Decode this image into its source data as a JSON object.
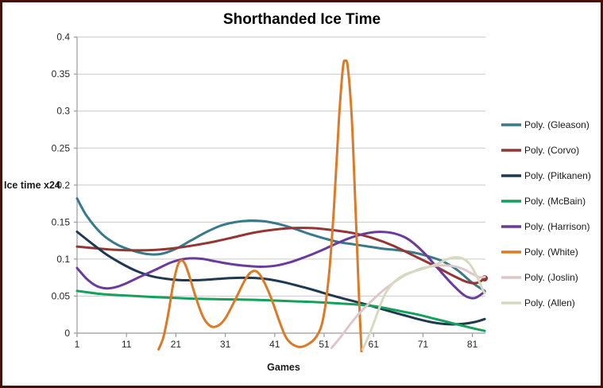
{
  "title": "Shorthanded Ice Time",
  "colors": {
    "grid": "#C9C9C9",
    "axis": "#9B9B9B",
    "tick_text": "#262626",
    "border": "#451008",
    "background": "#FFFFFF"
  },
  "legend": {
    "position": "right",
    "entries": [
      {
        "label": "Poly. (Gleason)",
        "color": "#38798C"
      },
      {
        "label": "Poly. (Corvo)",
        "color": "#943634"
      },
      {
        "label": "Poly. (Pitkanen)",
        "color": "#1F3A50"
      },
      {
        "label": "Poly. (McBain)",
        "color": "#16A05D"
      },
      {
        "label": "Poly. (Harrison)",
        "color": "#693C9B"
      },
      {
        "label": "Poly. (White)",
        "color": "#DB7A27"
      },
      {
        "label": "Poly. (Joslin)",
        "color": "#DEC7C9"
      },
      {
        "label": "Poly. (Allen)",
        "color": "#D6DABE"
      }
    ]
  },
  "chart_data": {
    "type": "line",
    "title": "Shorthanded Ice Time",
    "xlabel": "Games",
    "ylabel": "Ice time x24",
    "xlim": [
      1,
      83.5
    ],
    "ylim": [
      0,
      0.4
    ],
    "grid": true,
    "legend_position": "right",
    "x_ticks": [
      1,
      11,
      21,
      31,
      41,
      51,
      61,
      71,
      81
    ],
    "y_ticks": [
      "0",
      "0.05",
      "0.1",
      "0.15",
      "0.2",
      "0.25",
      "0.3",
      "0.35",
      "0.4"
    ],
    "y_tick_values": [
      0,
      0.05,
      0.1,
      0.15,
      0.2,
      0.25,
      0.3,
      0.35,
      0.4
    ],
    "series": [
      {
        "name": "Poly. (Gleason)",
        "color": "#38798C",
        "end_dot": false,
        "points": [
          [
            1,
            0.182
          ],
          [
            3,
            0.158
          ],
          [
            6,
            0.134
          ],
          [
            9,
            0.12
          ],
          [
            12,
            0.112
          ],
          [
            15,
            0.107
          ],
          [
            18,
            0.107
          ],
          [
            21,
            0.114
          ],
          [
            24,
            0.125
          ],
          [
            27,
            0.136
          ],
          [
            30,
            0.145
          ],
          [
            33,
            0.15
          ],
          [
            36,
            0.152
          ],
          [
            39,
            0.151
          ],
          [
            42,
            0.147
          ],
          [
            45,
            0.141
          ],
          [
            48,
            0.134
          ],
          [
            51,
            0.128
          ],
          [
            54,
            0.123
          ],
          [
            57,
            0.12
          ],
          [
            60,
            0.117
          ],
          [
            63,
            0.114
          ],
          [
            66,
            0.112
          ],
          [
            69,
            0.109
          ],
          [
            72,
            0.104
          ],
          [
            75,
            0.097
          ],
          [
            78,
            0.085
          ],
          [
            81,
            0.068
          ],
          [
            83.5,
            0.057
          ]
        ]
      },
      {
        "name": "Poly. (Corvo)",
        "color": "#943634",
        "end_dot": true,
        "points": [
          [
            1,
            0.117
          ],
          [
            5,
            0.1145
          ],
          [
            9,
            0.1125
          ],
          [
            13,
            0.1118
          ],
          [
            17,
            0.1125
          ],
          [
            21,
            0.115
          ],
          [
            25,
            0.119
          ],
          [
            29,
            0.124
          ],
          [
            33,
            0.13
          ],
          [
            37,
            0.136
          ],
          [
            41,
            0.14
          ],
          [
            45,
            0.142
          ],
          [
            49,
            0.1418
          ],
          [
            53,
            0.139
          ],
          [
            57,
            0.135
          ],
          [
            61,
            0.128
          ],
          [
            65,
            0.118
          ],
          [
            69,
            0.105
          ],
          [
            73,
            0.092
          ],
          [
            77,
            0.078
          ],
          [
            80,
            0.069
          ],
          [
            82,
            0.068
          ],
          [
            83.5,
            0.074
          ]
        ]
      },
      {
        "name": "Poly. (Pitkanen)",
        "color": "#1F3A50",
        "end_dot": false,
        "points": [
          [
            1,
            0.137
          ],
          [
            4,
            0.121
          ],
          [
            7,
            0.106
          ],
          [
            10,
            0.094
          ],
          [
            13,
            0.084
          ],
          [
            16,
            0.077
          ],
          [
            19,
            0.0735
          ],
          [
            22,
            0.0715
          ],
          [
            25,
            0.0715
          ],
          [
            28,
            0.0725
          ],
          [
            31,
            0.074
          ],
          [
            34,
            0.0748
          ],
          [
            37,
            0.0745
          ],
          [
            40,
            0.0725
          ],
          [
            43,
            0.0685
          ],
          [
            46,
            0.0635
          ],
          [
            49,
            0.058
          ],
          [
            52,
            0.052
          ],
          [
            55,
            0.0465
          ],
          [
            58,
            0.0415
          ],
          [
            61,
            0.036
          ],
          [
            64,
            0.03
          ],
          [
            67,
            0.0245
          ],
          [
            70,
            0.019
          ],
          [
            73,
            0.0145
          ],
          [
            76,
            0.012
          ],
          [
            79,
            0.0125
          ],
          [
            81.5,
            0.015
          ],
          [
            83.5,
            0.019
          ]
        ]
      },
      {
        "name": "Poly. (McBain)",
        "color": "#16A05D",
        "end_dot": false,
        "points": [
          [
            1,
            0.057
          ],
          [
            5,
            0.0535
          ],
          [
            9,
            0.0515
          ],
          [
            13,
            0.05
          ],
          [
            17,
            0.0485
          ],
          [
            21,
            0.0475
          ],
          [
            25,
            0.0465
          ],
          [
            29,
            0.046
          ],
          [
            33,
            0.0455
          ],
          [
            37,
            0.045
          ],
          [
            41,
            0.044
          ],
          [
            45,
            0.043
          ],
          [
            49,
            0.042
          ],
          [
            53,
            0.0405
          ],
          [
            57,
            0.039
          ],
          [
            61,
            0.0365
          ],
          [
            64,
            0.033
          ],
          [
            67,
            0.029
          ],
          [
            70,
            0.025
          ],
          [
            73,
            0.02
          ],
          [
            76,
            0.015
          ],
          [
            79,
            0.01
          ],
          [
            81.5,
            0.006
          ],
          [
            83.5,
            0.003
          ]
        ]
      },
      {
        "name": "Poly. (Harrison)",
        "color": "#693C9B",
        "end_dot": false,
        "points": [
          [
            1,
            0.088
          ],
          [
            3,
            0.073
          ],
          [
            5,
            0.0635
          ],
          [
            7,
            0.0605
          ],
          [
            9,
            0.0625
          ],
          [
            11,
            0.0675
          ],
          [
            14,
            0.077
          ],
          [
            17,
            0.086
          ],
          [
            20,
            0.0955
          ],
          [
            23,
            0.1005
          ],
          [
            26,
            0.1005
          ],
          [
            29,
            0.097
          ],
          [
            32,
            0.0935
          ],
          [
            35,
            0.091
          ],
          [
            38,
            0.0897
          ],
          [
            41,
            0.091
          ],
          [
            44,
            0.0955
          ],
          [
            47,
            0.1025
          ],
          [
            50,
            0.1105
          ],
          [
            53,
            0.1195
          ],
          [
            56,
            0.128
          ],
          [
            59,
            0.134
          ],
          [
            62,
            0.1368
          ],
          [
            65,
            0.135
          ],
          [
            68,
            0.127
          ],
          [
            71,
            0.11
          ],
          [
            74,
            0.0875
          ],
          [
            77,
            0.0655
          ],
          [
            79.5,
            0.0505
          ],
          [
            81.5,
            0.0475
          ],
          [
            83.5,
            0.056
          ]
        ]
      },
      {
        "name": "Poly. (White)",
        "color": "#DB7A27",
        "end_dot": false,
        "points": [
          [
            17.5,
            -0.022
          ],
          [
            18.5,
            -0.005
          ],
          [
            19.5,
            0.028
          ],
          [
            20.5,
            0.068
          ],
          [
            21.5,
            0.094
          ],
          [
            22.5,
            0.097
          ],
          [
            23.5,
            0.082
          ],
          [
            25,
            0.049
          ],
          [
            26.5,
            0.022
          ],
          [
            28,
            0.0095
          ],
          [
            29.5,
            0.01
          ],
          [
            31,
            0.02
          ],
          [
            33,
            0.045
          ],
          [
            35,
            0.072
          ],
          [
            36.5,
            0.0835
          ],
          [
            38,
            0.079
          ],
          [
            40,
            0.052
          ],
          [
            42,
            0.015
          ],
          [
            43.5,
            -0.008
          ],
          [
            45.5,
            -0.018
          ],
          [
            47.5,
            -0.016
          ],
          [
            49.5,
            -0.004
          ],
          [
            50.8,
            0.02
          ],
          [
            52,
            0.08
          ],
          [
            53,
            0.17
          ],
          [
            54,
            0.29
          ],
          [
            54.8,
            0.358
          ],
          [
            55.3,
            0.368
          ],
          [
            55.8,
            0.358
          ],
          [
            56.6,
            0.29
          ],
          [
            57.4,
            0.16
          ],
          [
            58.1,
            0.04
          ],
          [
            58.6,
            -0.03
          ]
        ]
      },
      {
        "name": "Poly. (Joslin)",
        "color": "#DEC7C9",
        "end_dot": false,
        "points": [
          [
            52.5,
            -0.02
          ],
          [
            54,
            -0.008
          ],
          [
            55.5,
            0.005
          ],
          [
            57,
            0.018
          ],
          [
            59,
            0.033
          ],
          [
            61,
            0.046
          ],
          [
            63,
            0.058
          ],
          [
            65,
            0.068
          ],
          [
            67,
            0.077
          ],
          [
            69,
            0.083
          ],
          [
            71,
            0.088
          ],
          [
            73,
            0.0905
          ],
          [
            75,
            0.0915
          ],
          [
            77,
            0.0905
          ],
          [
            79,
            0.087
          ],
          [
            81,
            0.08
          ],
          [
            82.5,
            0.0755
          ],
          [
            83.5,
            0.076
          ]
        ]
      },
      {
        "name": "Poly. (Allen)",
        "color": "#D6DABE",
        "end_dot": false,
        "points": [
          [
            58.8,
            -0.022
          ],
          [
            59.6,
            -0.01
          ],
          [
            60.5,
            0.004
          ],
          [
            61.5,
            0.022
          ],
          [
            62.5,
            0.04
          ],
          [
            63.5,
            0.055
          ],
          [
            65,
            0.068
          ],
          [
            66.5,
            0.076
          ],
          [
            68,
            0.081
          ],
          [
            70,
            0.085
          ],
          [
            72,
            0.089
          ],
          [
            74,
            0.094
          ],
          [
            76,
            0.1
          ],
          [
            77.5,
            0.1025
          ],
          [
            79,
            0.101
          ],
          [
            80.5,
            0.093
          ],
          [
            81.8,
            0.078
          ],
          [
            83,
            0.06
          ],
          [
            83.5,
            0.054
          ]
        ]
      }
    ]
  }
}
